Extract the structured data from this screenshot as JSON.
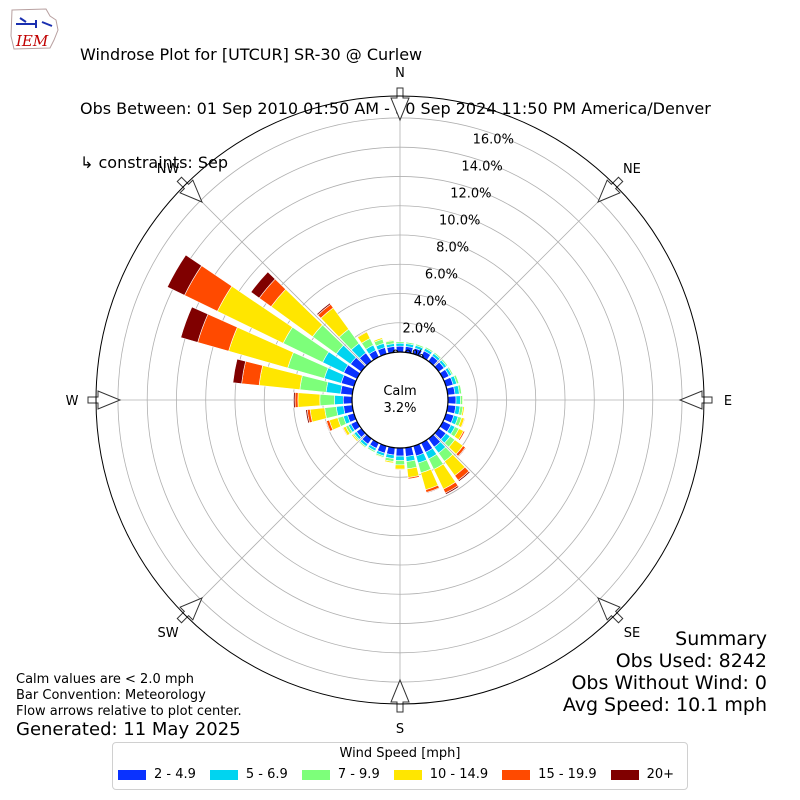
{
  "header": {
    "logo_text": "IEM",
    "title_line1": "Windrose Plot for [UTCUR] SR-30 @ Curlew",
    "title_line2": "Obs Between: 01 Sep 2010 01:50 AM - 30 Sep 2024 11:50 PM America/Denver",
    "title_line3": "↳ constraints: Sep"
  },
  "footer_notes": {
    "calm_note": "Calm values are < 2.0 mph",
    "bar_convention": "Bar Convention: Meteorology",
    "flow_arrows": "Flow arrows relative to plot center.",
    "generated": "Generated: 11 May 2025"
  },
  "summary": {
    "title": "Summary",
    "obs_used": "Obs Used: 8242",
    "obs_without_wind": "Obs Without Wind: 0",
    "avg_speed": "Avg Speed: 10.1 mph"
  },
  "legend": {
    "title": "Wind Speed [mph]",
    "items": [
      {
        "label": "2 - 4.9",
        "color": "#0a32ff"
      },
      {
        "label": "5 - 6.9",
        "color": "#00d4f0"
      },
      {
        "label": "7 - 9.9",
        "color": "#7dff7a"
      },
      {
        "label": "10 - 14.9",
        "color": "#ffe600"
      },
      {
        "label": "15 - 19.9",
        "color": "#ff4a00"
      },
      {
        "label": "20+",
        "color": "#800000"
      }
    ]
  },
  "chart_data": {
    "type": "windrose",
    "calm": {
      "label": "Calm",
      "value": "3.2%"
    },
    "radial_ticks": [
      "0.0%",
      "2.0%",
      "4.0%",
      "6.0%",
      "8.0%",
      "10.0%",
      "12.0%",
      "14.0%",
      "16.0%"
    ],
    "radial_values": [
      0,
      2,
      4,
      6,
      8,
      10,
      12,
      14,
      16
    ],
    "radial_max": 17.5,
    "compass_labels": [
      "N",
      "NE",
      "E",
      "SE",
      "S",
      "SW",
      "W",
      "NW"
    ],
    "compass_angles_deg": [
      0,
      45,
      90,
      135,
      180,
      225,
      270,
      315
    ],
    "directions_deg": [
      0,
      10,
      20,
      30,
      40,
      50,
      60,
      70,
      80,
      90,
      100,
      110,
      120,
      130,
      140,
      150,
      160,
      170,
      180,
      190,
      200,
      210,
      220,
      230,
      240,
      250,
      260,
      270,
      280,
      290,
      300,
      310,
      320,
      330,
      340,
      350
    ],
    "speed_bins": [
      "2 - 4.9",
      "5 - 6.9",
      "7 - 9.9",
      "10 - 14.9",
      "15 - 19.9",
      "20+"
    ],
    "series": [
      {
        "name": "2 - 4.9",
        "values": [
          0.4,
          0.4,
          0.4,
          0.45,
          0.45,
          0.45,
          0.45,
          0.5,
          0.5,
          0.55,
          0.55,
          0.55,
          0.6,
          0.6,
          0.7,
          0.7,
          0.7,
          0.6,
          0.55,
          0.5,
          0.5,
          0.4,
          0.45,
          0.4,
          0.45,
          0.45,
          0.6,
          0.6,
          0.8,
          0.9,
          1.0,
          0.9,
          0.7,
          0.5,
          0.45,
          0.4
        ]
      },
      {
        "name": "5 - 6.9",
        "values": [
          0.2,
          0.2,
          0.2,
          0.2,
          0.2,
          0.2,
          0.2,
          0.25,
          0.3,
          0.3,
          0.3,
          0.3,
          0.3,
          0.35,
          0.5,
          0.5,
          0.5,
          0.35,
          0.3,
          0.25,
          0.2,
          0.2,
          0.2,
          0.2,
          0.2,
          0.3,
          0.5,
          0.6,
          1.0,
          1.2,
          1.6,
          1.2,
          0.8,
          0.4,
          0.3,
          0.2
        ]
      },
      {
        "name": "7 - 9.9",
        "values": [
          0.1,
          0.1,
          0.1,
          0.1,
          0.1,
          0.1,
          0.1,
          0.15,
          0.15,
          0.15,
          0.2,
          0.25,
          0.3,
          0.4,
          0.7,
          0.8,
          0.7,
          0.5,
          0.3,
          0.2,
          0.1,
          0.1,
          0.1,
          0.1,
          0.2,
          0.4,
          0.8,
          1.0,
          1.8,
          2.6,
          3.0,
          2.0,
          1.2,
          0.5,
          0.3,
          0.2
        ]
      },
      {
        "name": "10 - 14.9",
        "values": [
          0.0,
          0.0,
          0.0,
          0.0,
          0.0,
          0.0,
          0.0,
          0.0,
          0.0,
          0.05,
          0.1,
          0.2,
          0.35,
          0.7,
          1.2,
          1.5,
          1.2,
          0.6,
          0.3,
          0.1,
          0.05,
          0.0,
          0.05,
          0.1,
          0.2,
          0.6,
          1.0,
          1.5,
          2.8,
          4.2,
          5.0,
          3.5,
          1.8,
          0.5,
          0.1,
          0.05
        ]
      },
      {
        "name": "15 - 19.9",
        "values": [
          0.0,
          0.0,
          0.0,
          0.0,
          0.0,
          0.0,
          0.0,
          0.0,
          0.0,
          0.0,
          0.0,
          0.05,
          0.1,
          0.2,
          0.4,
          0.3,
          0.2,
          0.1,
          0.05,
          0.0,
          0.0,
          0.0,
          0.0,
          0.0,
          0.05,
          0.2,
          0.2,
          0.2,
          1.2,
          2.2,
          2.5,
          1.0,
          0.3,
          0.05,
          0.0,
          0.0
        ]
      },
      {
        "name": "20+",
        "values": [
          0.0,
          0.0,
          0.0,
          0.0,
          0.0,
          0.0,
          0.0,
          0.0,
          0.0,
          0.0,
          0.0,
          0.0,
          0.0,
          0.05,
          0.1,
          0.1,
          0.05,
          0.0,
          0.0,
          0.0,
          0.0,
          0.0,
          0.0,
          0.0,
          0.0,
          0.05,
          0.1,
          0.1,
          0.6,
          1.2,
          1.3,
          0.7,
          0.1,
          0.0,
          0.0,
          0.0
        ]
      }
    ]
  }
}
